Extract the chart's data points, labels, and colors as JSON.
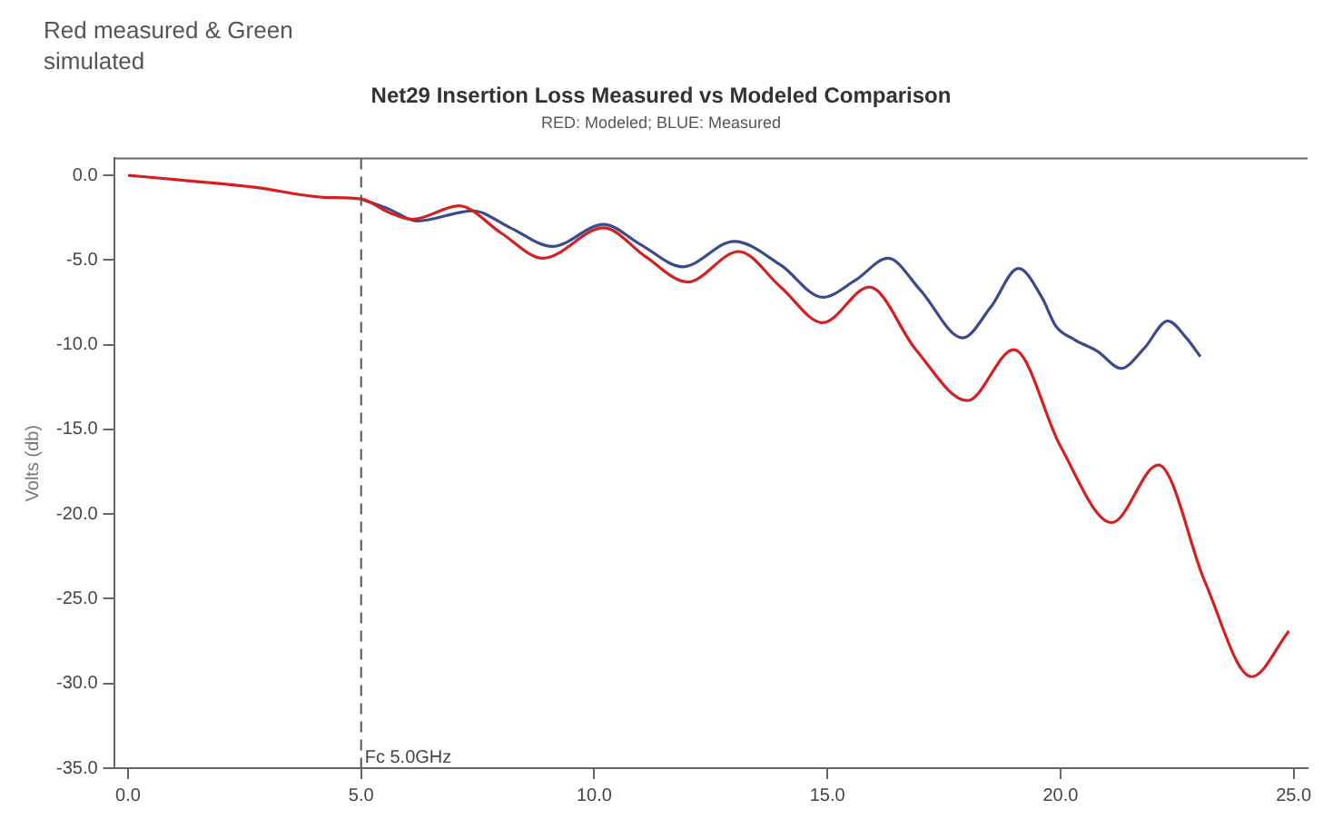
{
  "chart_data": {
    "type": "line",
    "title": "Net29 Insertion Loss Measured vs Modeled Comparison",
    "subtitle": "RED: Modeled; BLUE: Measured",
    "ylabel": "Volts (db)",
    "annotations": [
      "Red measured & Green simulated"
    ],
    "xlim": [
      -0.3,
      25.3
    ],
    "xticks": [
      {
        "value": 0,
        "label": "0.0"
      },
      {
        "value": 5,
        "label": "5.0"
      },
      {
        "value": 10,
        "label": "10.0"
      },
      {
        "value": 15,
        "label": "15.0"
      },
      {
        "value": 20,
        "label": "20.0"
      },
      {
        "value": 25,
        "label": "25.0"
      }
    ],
    "ylim": [
      -35,
      1
    ],
    "yticks": [
      {
        "value": 0,
        "label": "0.0"
      },
      {
        "value": -5,
        "label": "-5.0"
      },
      {
        "value": -10,
        "label": "-10.0"
      },
      {
        "value": -15,
        "label": "-15.0"
      },
      {
        "value": -20,
        "label": "-20.0"
      },
      {
        "value": -25,
        "label": "-25.0"
      },
      {
        "value": -30,
        "label": "-30.0"
      },
      {
        "value": -35,
        "label": "-35.0"
      }
    ],
    "grid": false,
    "legend": false,
    "marker": "none",
    "line_style": "solid",
    "ref_lines": [
      {
        "axis": "x",
        "value": 5,
        "label": "Fc 5.0GHz",
        "color": "#555555",
        "line_style": "dashed"
      }
    ],
    "series": [
      {
        "color": "#3a4a8a",
        "x": [
          5,
          5.6,
          6.2,
          7.4,
          8.2,
          9.1,
          10.2,
          11.0,
          11.9,
          13.0,
          14.0,
          14.9,
          15.6,
          16.3,
          17.0,
          17.9,
          18.5,
          19.1,
          19.6,
          19.9,
          20.3,
          20.8,
          21.3,
          21.8,
          22.3,
          22.7,
          23.0
        ],
        "values": [
          -1.4,
          -2.0,
          -2.7,
          -2.1,
          -3.1,
          -4.2,
          -2.9,
          -4.1,
          -5.4,
          -3.9,
          -5.3,
          -7.2,
          -6.2,
          -4.9,
          -6.8,
          -9.6,
          -7.8,
          -5.5,
          -7.2,
          -8.9,
          -9.7,
          -10.4,
          -11.4,
          -10.2,
          -8.6,
          -9.6,
          -10.7
        ]
      },
      {
        "color": "#d42020",
        "x": [
          0,
          1.2,
          2.7,
          4.2,
          5,
          5.6,
          6.1,
          7.1,
          8.0,
          8.9,
          10.2,
          11.1,
          12.0,
          13.1,
          14.0,
          14.9,
          15.9,
          16.9,
          18.0,
          19.0,
          20.0,
          21.1,
          22.1,
          23.1,
          24.1,
          24.9
        ],
        "values": [
          0,
          -0.3,
          -0.7,
          -1.3,
          -1.4,
          -2.2,
          -2.6,
          -1.8,
          -3.4,
          -4.9,
          -3.1,
          -4.8,
          -6.3,
          -4.5,
          -6.6,
          -8.7,
          -6.6,
          -10.3,
          -13.3,
          -10.3,
          -16.0,
          -20.5,
          -17.1,
          -24.0,
          -29.6,
          -26.9
        ]
      }
    ]
  }
}
